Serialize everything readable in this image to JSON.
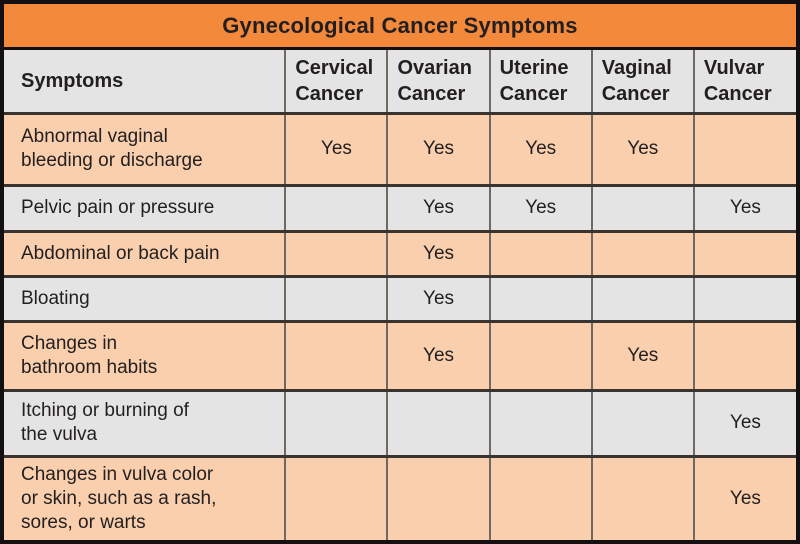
{
  "title": "Gynecological Cancer Symptoms",
  "colors": {
    "header_orange": "#F3893B",
    "row_peach": "#F9CFAD",
    "row_gray": "#E4E4E4",
    "outer_border": "#141011",
    "row_line": "#3A3430",
    "col_line": "#6F6962",
    "text_dark": "#231F20"
  },
  "table": {
    "header": {
      "symptoms": "Symptoms",
      "cancers": [
        "Cervical\nCancer",
        "Ovarian\nCancer",
        "Uterine\nCancer",
        "Vaginal\nCancer",
        "Vulvar\nCancer"
      ]
    },
    "rows": [
      {
        "symptom": "Abnormal vaginal\nbleeding or discharge",
        "cells": [
          "Yes",
          "Yes",
          "Yes",
          "Yes",
          ""
        ]
      },
      {
        "symptom": "Pelvic pain or pressure",
        "cells": [
          "",
          "Yes",
          "Yes",
          "",
          "Yes"
        ]
      },
      {
        "symptom": "Abdominal or back pain",
        "cells": [
          "",
          "Yes",
          "",
          "",
          ""
        ]
      },
      {
        "symptom": "Bloating",
        "cells": [
          "",
          "Yes",
          "",
          "",
          ""
        ]
      },
      {
        "symptom": "Changes in\nbathroom habits",
        "cells": [
          "",
          "Yes",
          "",
          "Yes",
          ""
        ]
      },
      {
        "symptom": "Itching or burning of\nthe vulva",
        "cells": [
          "",
          "",
          "",
          "",
          "Yes"
        ]
      },
      {
        "symptom": "Changes in vulva color\nor skin, such as a rash,\nsores, or warts",
        "cells": [
          "",
          "",
          "",
          "",
          "Yes"
        ]
      }
    ]
  },
  "chart_data": {
    "type": "table",
    "title": "Gynecological Cancer Symptoms",
    "columns": [
      "Symptoms",
      "Cervical Cancer",
      "Ovarian Cancer",
      "Uterine Cancer",
      "Vaginal Cancer",
      "Vulvar Cancer"
    ],
    "rows": [
      [
        "Abnormal vaginal bleeding or discharge",
        "Yes",
        "Yes",
        "Yes",
        "Yes",
        ""
      ],
      [
        "Pelvic pain or pressure",
        "",
        "Yes",
        "Yes",
        "",
        "Yes"
      ],
      [
        "Abdominal or back pain",
        "",
        "Yes",
        "",
        "",
        ""
      ],
      [
        "Bloating",
        "",
        "Yes",
        "",
        "",
        ""
      ],
      [
        "Changes in bathroom habits",
        "",
        "Yes",
        "",
        "Yes",
        ""
      ],
      [
        "Itching or burning of the vulva",
        "",
        "",
        "",
        "",
        "Yes"
      ],
      [
        "Changes in vulva color or skin, such as a rash, sores, or warts",
        "",
        "",
        "",
        "",
        "Yes"
      ]
    ]
  }
}
